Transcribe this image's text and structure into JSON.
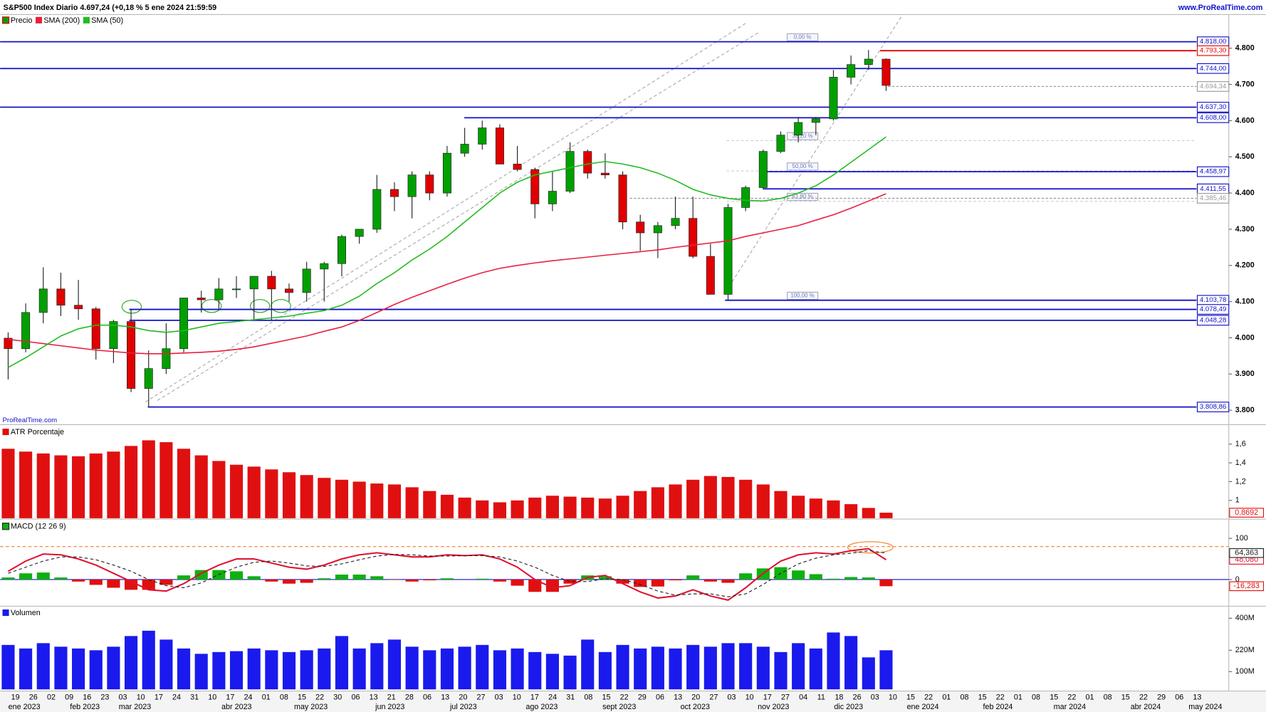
{
  "header": {
    "title": "S&P500 Index Diario 4.697,24 (+0,18 % 5 ene 2024 21:59:59",
    "site": "www.ProRealTime.com",
    "watermark": "ProRealTime.com"
  },
  "x_axis": {
    "ticks": [
      "19",
      "26",
      "02",
      "09",
      "16",
      "23",
      "03",
      "10",
      "17",
      "24",
      "31",
      "10",
      "17",
      "24",
      "01",
      "08",
      "15",
      "22",
      "30",
      "06",
      "13",
      "21",
      "28",
      "06",
      "13",
      "20",
      "27",
      "03",
      "10",
      "17",
      "24",
      "31",
      "08",
      "15",
      "22",
      "29",
      "06",
      "13",
      "20",
      "27",
      "03",
      "10",
      "17",
      "27",
      "04",
      "11",
      "18",
      "26",
      "03",
      "10",
      "15",
      "22",
      "01",
      "08",
      "15",
      "22",
      "01",
      "08",
      "15",
      "22",
      "01",
      "08",
      "15",
      "22",
      "29",
      "06",
      "13"
    ],
    "months": [
      "ene 2023",
      "feb 2023",
      "mar 2023",
      "abr 2023",
      "may 2023",
      "jun 2023",
      "jul 2023",
      "ago 2023",
      "sept 2023",
      "oct 2023",
      "nov 2023",
      "dic 2023",
      "ene 2024",
      "feb 2024",
      "mar 2024",
      "abr 2024",
      "may 2024"
    ]
  },
  "chart_data": [
    {
      "type": "candlestick",
      "ylim": [
        3778,
        4911
      ],
      "yticks": [
        {
          "value": 3800,
          "label": "3.800"
        },
        {
          "value": 3900,
          "label": "3.900"
        },
        {
          "value": 4000,
          "label": "4.000"
        },
        {
          "value": 4100,
          "label": "4.100"
        },
        {
          "value": 4200,
          "label": "4.200"
        },
        {
          "value": 4300,
          "label": "4.300"
        },
        {
          "value": 4400,
          "label": "4.400"
        },
        {
          "value": 4500,
          "label": "4.500"
        },
        {
          "value": 4600,
          "label": "4.600"
        },
        {
          "value": 4700,
          "label": "4.700"
        },
        {
          "value": 4800,
          "label": "4.800"
        }
      ],
      "series": [
        {
          "name": "Precio",
          "up_color": "#00a000",
          "down_color": "#e00000",
          "open": [
            3999,
            3970,
            4070,
            4135,
            4090,
            4080,
            3970,
            4045,
            3860,
            3915,
            3970,
            4110,
            4105,
            4135,
            4135,
            4170,
            4135,
            4125,
            4190,
            4205,
            4280,
            4300,
            4410,
            4390,
            4450,
            4400,
            4510,
            4535,
            4580,
            4480,
            4465,
            4370,
            4405,
            4515,
            4455,
            4450,
            4320,
            4290,
            4310,
            4330,
            4225,
            4120,
            4360,
            4415,
            4515,
            4560,
            4595,
            4605,
            4720,
            4755,
            4770
          ],
          "high": [
            4015,
            4095,
            4195,
            4180,
            4160,
            4085,
            4050,
            4080,
            3965,
            4040,
            4110,
            4130,
            4165,
            4170,
            4170,
            4185,
            4150,
            4210,
            4210,
            4285,
            4300,
            4450,
            4430,
            4460,
            4460,
            4530,
            4580,
            4600,
            4590,
            4530,
            4470,
            4460,
            4540,
            4520,
            4510,
            4460,
            4340,
            4320,
            4390,
            4390,
            4260,
            4370,
            4420,
            4520,
            4570,
            4610,
            4610,
            4740,
            4780,
            4795,
            4772
          ],
          "low": [
            3885,
            3960,
            4040,
            4060,
            4050,
            3940,
            3930,
            3850,
            3808,
            3900,
            3960,
            4070,
            4080,
            4110,
            4050,
            4050,
            4100,
            4100,
            4100,
            4170,
            4260,
            4290,
            4350,
            4330,
            4380,
            4390,
            4500,
            4520,
            4480,
            4460,
            4330,
            4350,
            4400,
            4440,
            4440,
            4300,
            4240,
            4220,
            4300,
            4220,
            4120,
            4105,
            4350,
            4410,
            4510,
            4540,
            4560,
            4600,
            4700,
            4740,
            4682
          ],
          "close": [
            3970,
            4070,
            4135,
            4090,
            4080,
            3970,
            4045,
            3860,
            3915,
            3970,
            4110,
            4105,
            4135,
            4135,
            4170,
            4135,
            4125,
            4190,
            4205,
            4280,
            4300,
            4410,
            4390,
            4450,
            4400,
            4510,
            4535,
            4580,
            4480,
            4465,
            4370,
            4405,
            4515,
            4455,
            4450,
            4320,
            4290,
            4310,
            4330,
            4225,
            4120,
            4360,
            4415,
            4515,
            4560,
            4595,
            4605,
            4720,
            4755,
            4770,
            4697.24
          ]
        },
        {
          "name": "SMA (200)",
          "color": "#e8203c",
          "values": [
            3996,
            3990,
            3984,
            3978,
            3972,
            3966,
            3962,
            3958,
            3956,
            3956,
            3958,
            3960,
            3963,
            3968,
            3975,
            3985,
            3995,
            4005,
            4018,
            4030,
            4048,
            4070,
            4092,
            4112,
            4130,
            4148,
            4165,
            4180,
            4192,
            4200,
            4207,
            4213,
            4218,
            4223,
            4228,
            4233,
            4238,
            4243,
            4250,
            4256,
            4262,
            4268,
            4280,
            4290,
            4300,
            4310,
            4325,
            4340,
            4358,
            4378,
            4398
          ]
        },
        {
          "name": "SMA (50)",
          "color": "#22bb22",
          "values": [
            3918,
            3945,
            3975,
            4005,
            4025,
            4035,
            4035,
            4030,
            4020,
            4015,
            4020,
            4030,
            4040,
            4045,
            4050,
            4055,
            4060,
            4068,
            4075,
            4090,
            4115,
            4150,
            4180,
            4215,
            4245,
            4280,
            4320,
            4360,
            4400,
            4430,
            4450,
            4460,
            4470,
            4480,
            4487,
            4480,
            4470,
            4455,
            4435,
            4410,
            4395,
            4385,
            4380,
            4378,
            4385,
            4400,
            4420,
            4450,
            4485,
            4520,
            4555
          ]
        }
      ],
      "levels": [
        {
          "value": 4818,
          "label": "4.818,00",
          "color": "#1010c8",
          "style": "solid"
        },
        {
          "value": 4793.3,
          "label": "4.793,30",
          "color": "#e00000",
          "style": "solid"
        },
        {
          "value": 4744,
          "label": "4.744,00",
          "color": "#1010c8",
          "style": "solid"
        },
        {
          "value": 4694.34,
          "label": "4.694,34",
          "color": "#999999",
          "style": "dashed"
        },
        {
          "value": 4637.3,
          "label": "4.637,30",
          "color": "#1010c8",
          "style": "solid"
        },
        {
          "value": 4608,
          "label": "4.608,00",
          "color": "#1010c8",
          "style": "solid"
        },
        {
          "value": 4458.97,
          "label": "4.458,97",
          "color": "#1010c8",
          "style": "solid"
        },
        {
          "value": 4411.55,
          "label": "4.411,55",
          "color": "#1010c8",
          "style": "solid"
        },
        {
          "value": 4385.46,
          "label": "4.385,46",
          "color": "#999999",
          "style": "dashed"
        },
        {
          "value": 4103.78,
          "label": "4.103,78",
          "color": "#1010c8",
          "style": "solid"
        },
        {
          "value": 4078.49,
          "label": "4.078,49",
          "color": "#1010c8",
          "style": "solid"
        },
        {
          "value": 4048.28,
          "label": "4.048,28",
          "color": "#1010c8",
          "style": "solid"
        },
        {
          "value": 3808.86,
          "label": "3.808,86",
          "color": "#1010c8",
          "style": "solid"
        }
      ],
      "fib": [
        {
          "text": "0,00 %",
          "price": 4818
        },
        {
          "text": "38,20 %",
          "price": 4545
        },
        {
          "text": "50,00 %",
          "price": 4461
        },
        {
          "text": "61,80 %",
          "price": 4377
        },
        {
          "text": "100,00 %",
          "price": 4103.78
        }
      ]
    },
    {
      "type": "bar",
      "ylim": [
        0.81,
        1.79
      ],
      "yticks": [
        1,
        {
          "value": 1.2,
          "label": "1,2"
        },
        {
          "value": 1.4,
          "label": "1,4"
        },
        {
          "value": 1.6,
          "label": "1,6"
        }
      ],
      "series": [
        {
          "name": "ATR Porcentaje",
          "color": "#e01010",
          "last_value_label": "0,8692",
          "values": [
            1.55,
            1.52,
            1.5,
            1.48,
            1.47,
            1.5,
            1.52,
            1.58,
            1.64,
            1.62,
            1.55,
            1.48,
            1.42,
            1.38,
            1.36,
            1.33,
            1.3,
            1.27,
            1.24,
            1.22,
            1.2,
            1.18,
            1.17,
            1.14,
            1.1,
            1.06,
            1.03,
            1.0,
            0.98,
            1.0,
            1.03,
            1.05,
            1.04,
            1.03,
            1.02,
            1.05,
            1.1,
            1.14,
            1.17,
            1.22,
            1.26,
            1.25,
            1.22,
            1.17,
            1.1,
            1.05,
            1.02,
            1.0,
            0.96,
            0.92,
            0.8692
          ]
        }
      ]
    },
    {
      "type": "macd",
      "title": "MACD (12 26 9)",
      "ylim": [
        -63,
        143
      ],
      "yticks": [
        0,
        100
      ],
      "zero_line_color": "#1010c8",
      "hline": 80,
      "hline_color": "#f08020",
      "histogram": {
        "up_color": "#10b010",
        "down_color": "#e01010",
        "last_value_label": "-16,283",
        "values": [
          5,
          15,
          17,
          5,
          -5,
          -13,
          -20,
          -25,
          -25,
          -13,
          10,
          23,
          23,
          20,
          8,
          -5,
          -10,
          -8,
          3,
          12,
          12,
          8,
          -1,
          -5,
          -2,
          3,
          0,
          2,
          -5,
          -15,
          -30,
          -30,
          -10,
          10,
          8,
          -10,
          -18,
          -17,
          -2,
          10,
          -5,
          -8,
          15,
          27,
          30,
          22,
          13,
          2,
          6,
          5,
          -16.283
        ]
      },
      "series": [
        {
          "color": "#e01030",
          "style": "solid",
          "last_value_label": "48,080",
          "values": [
            20,
            45,
            62,
            60,
            50,
            35,
            15,
            -5,
            -25,
            -28,
            -10,
            15,
            35,
            50,
            50,
            40,
            30,
            25,
            35,
            50,
            60,
            65,
            60,
            55,
            55,
            60,
            58,
            60,
            50,
            30,
            0,
            -20,
            -15,
            5,
            10,
            -10,
            -30,
            -45,
            -40,
            -25,
            -40,
            -50,
            -20,
            15,
            45,
            60,
            65,
            62,
            70,
            75,
            48.08
          ]
        },
        {
          "color": "#222222",
          "style": "dashed",
          "last_value_label": "64,363",
          "values": [
            15,
            30,
            45,
            55,
            55,
            48,
            35,
            20,
            0,
            -15,
            -20,
            -8,
            12,
            30,
            42,
            45,
            40,
            33,
            32,
            38,
            48,
            57,
            61,
            60,
            57,
            57,
            58,
            58,
            55,
            45,
            30,
            10,
            -5,
            -5,
            2,
            0,
            -12,
            -28,
            -38,
            -35,
            -35,
            -42,
            -35,
            -12,
            15,
            38,
            52,
            60,
            64,
            70,
            64.363
          ]
        }
      ]
    },
    {
      "type": "bar",
      "ylim": [
        0,
        463
      ],
      "yticks": [
        {
          "value": 100,
          "label": "100M"
        },
        {
          "value": 220,
          "label": "220M"
        },
        {
          "value": 400,
          "label": "400M"
        }
      ],
      "series": [
        {
          "name": "Volumen",
          "color": "#1a1aee",
          "values": [
            250,
            230,
            260,
            240,
            230,
            220,
            240,
            300,
            330,
            280,
            230,
            200,
            210,
            215,
            230,
            220,
            210,
            220,
            230,
            300,
            230,
            260,
            280,
            240,
            220,
            230,
            240,
            250,
            220,
            230,
            210,
            200,
            190,
            280,
            210,
            250,
            230,
            240,
            230,
            250,
            240,
            260,
            260,
            240,
            210,
            260,
            230,
            320,
            300,
            180,
            220
          ]
        }
      ]
    }
  ]
}
